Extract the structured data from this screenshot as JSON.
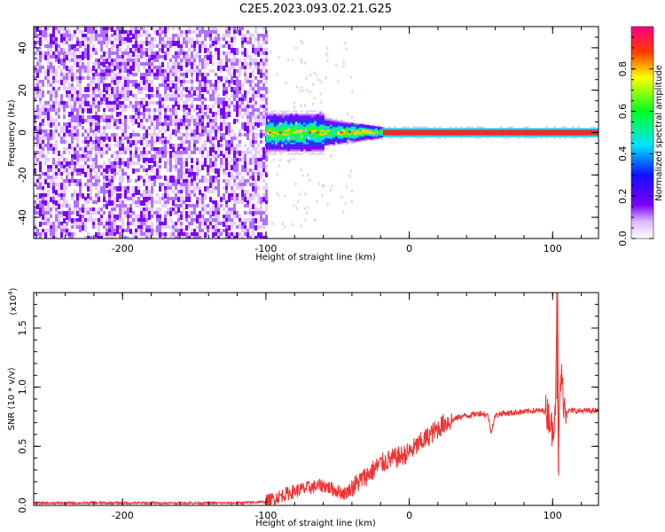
{
  "title": "C2E5.2023.093.02.21.G25",
  "chart_data": [
    {
      "type": "heatmap",
      "xlabel": "Height of straight line (km)",
      "ylabel": "Frequency (Hz)",
      "xlim": [
        -262,
        132
      ],
      "ylim": [
        -50,
        50
      ],
      "xticks": [
        -200,
        -100,
        0,
        100
      ],
      "yticks": [
        -40,
        -20,
        0,
        20,
        40
      ],
      "colorbar": {
        "label": "Normalized spectral amplitude",
        "range": [
          0,
          1
        ],
        "ticks": [
          "0.0",
          "0.2",
          "0.4",
          "0.6",
          "0.8"
        ]
      }
    },
    {
      "type": "line",
      "xlabel": "Height of straight line (km)",
      "ylabel": "SNR (10 * v/v)",
      "yscale_label": "(x10",
      "yscale_exp": "4",
      "yscale_close": ")",
      "xlim": [
        -262,
        132
      ],
      "ylim": [
        0,
        1.8
      ],
      "xticks": [
        -200,
        -100,
        0,
        100
      ],
      "yticks": [
        "0.0",
        "0.5",
        "1.0",
        "1.5"
      ],
      "series": [
        {
          "color": "#ee3333",
          "x": [
            -262,
            -200,
            -120,
            -100,
            -90,
            -80,
            -70,
            -60,
            -50,
            -45,
            -40,
            -35,
            -30,
            -25,
            -20,
            -15,
            -10,
            -5,
            0,
            5,
            10,
            15,
            20,
            25,
            30,
            35,
            40,
            45,
            50,
            55,
            57,
            60,
            65,
            70,
            75,
            80,
            85,
            90,
            95,
            98,
            100,
            102,
            103,
            104,
            105,
            106,
            108,
            110,
            115,
            120,
            125,
            132
          ],
          "y": [
            0.02,
            0.02,
            0.02,
            0.03,
            0.08,
            0.12,
            0.15,
            0.17,
            0.12,
            0.1,
            0.15,
            0.2,
            0.25,
            0.3,
            0.35,
            0.38,
            0.4,
            0.42,
            0.45,
            0.5,
            0.55,
            0.6,
            0.65,
            0.7,
            0.72,
            0.75,
            0.76,
            0.77,
            0.78,
            0.76,
            0.62,
            0.76,
            0.78,
            0.78,
            0.79,
            0.79,
            0.8,
            0.8,
            0.8,
            0.75,
            0.6,
            0.9,
            1.8,
            0.25,
            0.95,
            1.1,
            0.85,
            0.8,
            0.8,
            0.8,
            0.8,
            0.8
          ]
        }
      ]
    }
  ]
}
